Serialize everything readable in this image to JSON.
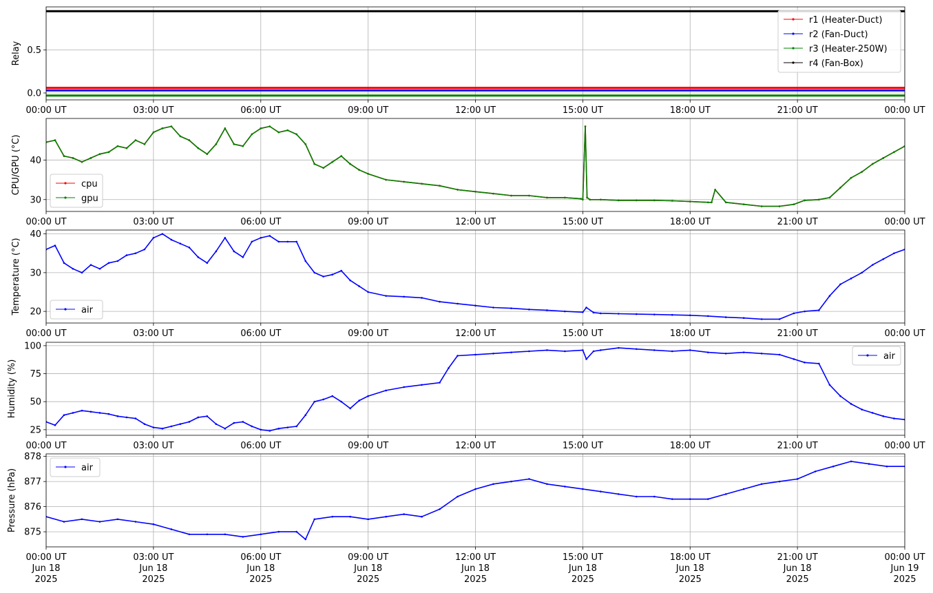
{
  "x_ticks": [
    "00:00 UT",
    "03:00 UT",
    "06:00 UT",
    "09:00 UT",
    "12:00 UT",
    "15:00 UT",
    "18:00 UT",
    "21:00 UT",
    "00:00 UT"
  ],
  "x_date_line1": [
    "Jun 18",
    "Jun 18",
    "Jun 18",
    "Jun 18",
    "Jun 18",
    "Jun 18",
    "Jun 18",
    "Jun 18",
    "Jun 19"
  ],
  "x_date_line2": [
    "2025",
    "2025",
    "2025",
    "2025",
    "2025",
    "2025",
    "2025",
    "2025",
    "2025"
  ],
  "chart_data": [
    {
      "type": "line",
      "ylabel": "Relay",
      "ylim": [
        -0.08,
        1.0
      ],
      "yticks": [
        0.0,
        0.5
      ],
      "ytick_labels": [
        "0.0",
        "0.5"
      ],
      "grid": true,
      "legend": "top-right",
      "x_range": [
        "2025-06-18 00:00",
        "2025-06-19 00:00"
      ],
      "series": [
        {
          "name": "r1 (Heater-Duct)",
          "color": "#ff0000",
          "x": [
            0,
            24
          ],
          "values": [
            0.06,
            0.06
          ]
        },
        {
          "name": "r2 (Fan-Duct)",
          "color": "#0000ff",
          "x": [
            0,
            24
          ],
          "values": [
            0.03,
            0.03
          ]
        },
        {
          "name": "r3 (Heater-250W)",
          "color": "#008000",
          "x": [
            0,
            24
          ],
          "values": [
            -0.03,
            -0.03
          ]
        },
        {
          "name": "r4 (Fan-Box)",
          "color": "#000000",
          "x": [
            0,
            24
          ],
          "values": [
            0.95,
            0.95
          ]
        }
      ]
    },
    {
      "type": "line",
      "ylabel": "CPU/GPU (°C)",
      "ylim": [
        27,
        50.5
      ],
      "yticks": [
        30,
        40
      ],
      "ytick_labels": [
        "30",
        "40"
      ],
      "grid": true,
      "legend": "lower-left",
      "series": [
        {
          "name": "cpu",
          "color": "#ff0000",
          "x": [
            0,
            0.25,
            0.5,
            0.75,
            1.0,
            1.25,
            1.5,
            1.75,
            2.0,
            2.25,
            2.5,
            2.75,
            3.0,
            3.25,
            3.5,
            3.75,
            4.0,
            4.25,
            4.5,
            4.75,
            5.0,
            5.25,
            5.5,
            5.75,
            6.0,
            6.25,
            6.5,
            6.75,
            7.0,
            7.25,
            7.5,
            7.75,
            8.0,
            8.25,
            8.5,
            8.75,
            9.0,
            9.5,
            10.0,
            10.5,
            11.0,
            11.5,
            12.0,
            12.5,
            13.0,
            13.5,
            14.0,
            14.5,
            14.95,
            15.0,
            15.07,
            15.12,
            15.2,
            15.5,
            16.0,
            16.5,
            17.0,
            17.5,
            18.0,
            18.5,
            18.6,
            18.7,
            19.0,
            19.5,
            20.0,
            20.5,
            20.9,
            21.2,
            21.6,
            21.9,
            22.2,
            22.5,
            22.8,
            23.1,
            23.4,
            23.7,
            24.0
          ],
          "values": [
            44.5,
            45.0,
            41.0,
            40.5,
            39.5,
            40.5,
            41.5,
            42.0,
            43.5,
            43.0,
            45.0,
            44.0,
            47.0,
            48.0,
            48.5,
            46.0,
            45.0,
            43.0,
            41.5,
            44.0,
            48.0,
            44.0,
            43.5,
            46.5,
            48.0,
            48.5,
            47.0,
            47.5,
            46.5,
            44.0,
            39.0,
            38.0,
            39.5,
            41.0,
            39.0,
            37.5,
            36.5,
            35.0,
            34.5,
            34.0,
            33.5,
            32.5,
            32.0,
            31.5,
            31.0,
            31.0,
            30.5,
            30.5,
            30.2,
            30.0,
            48.5,
            30.5,
            30.0,
            30.0,
            29.8,
            29.8,
            29.8,
            29.7,
            29.5,
            29.3,
            29.3,
            32.5,
            29.3,
            28.8,
            28.3,
            28.3,
            28.8,
            29.8,
            30.0,
            30.5,
            33.0,
            35.5,
            37.0,
            39.0,
            40.5,
            42.0,
            43.5
          ]
        },
        {
          "name": "gpu",
          "color": "#008000",
          "x": [
            0,
            0.25,
            0.5,
            0.75,
            1.0,
            1.25,
            1.5,
            1.75,
            2.0,
            2.25,
            2.5,
            2.75,
            3.0,
            3.25,
            3.5,
            3.75,
            4.0,
            4.25,
            4.5,
            4.75,
            5.0,
            5.25,
            5.5,
            5.75,
            6.0,
            6.25,
            6.5,
            6.75,
            7.0,
            7.25,
            7.5,
            7.75,
            8.0,
            8.25,
            8.5,
            8.75,
            9.0,
            9.5,
            10.0,
            10.5,
            11.0,
            11.5,
            12.0,
            12.5,
            13.0,
            13.5,
            14.0,
            14.5,
            14.95,
            15.0,
            15.07,
            15.12,
            15.2,
            15.5,
            16.0,
            16.5,
            17.0,
            17.5,
            18.0,
            18.5,
            18.6,
            18.7,
            19.0,
            19.5,
            20.0,
            20.5,
            20.9,
            21.2,
            21.6,
            21.9,
            22.2,
            22.5,
            22.8,
            23.1,
            23.4,
            23.7,
            24.0
          ],
          "values": [
            44.5,
            45.0,
            41.0,
            40.5,
            39.5,
            40.5,
            41.5,
            42.0,
            43.5,
            43.0,
            45.0,
            44.0,
            47.0,
            48.0,
            48.5,
            46.0,
            45.0,
            43.0,
            41.5,
            44.0,
            48.0,
            44.0,
            43.5,
            46.5,
            48.0,
            48.5,
            47.0,
            47.5,
            46.5,
            44.0,
            39.0,
            38.0,
            39.5,
            41.0,
            39.0,
            37.5,
            36.5,
            35.0,
            34.5,
            34.0,
            33.5,
            32.5,
            32.0,
            31.5,
            31.0,
            31.0,
            30.5,
            30.5,
            30.2,
            30.0,
            48.5,
            30.5,
            30.0,
            30.0,
            29.8,
            29.8,
            29.8,
            29.7,
            29.5,
            29.3,
            29.3,
            32.5,
            29.3,
            28.8,
            28.3,
            28.3,
            28.8,
            29.8,
            30.0,
            30.5,
            33.0,
            35.5,
            37.0,
            39.0,
            40.5,
            42.0,
            43.5
          ]
        }
      ]
    },
    {
      "type": "line",
      "ylabel": "Temperature (°C)",
      "ylim": [
        17,
        41
      ],
      "yticks": [
        20,
        30,
        40
      ],
      "ytick_labels": [
        "20",
        "30",
        "40"
      ],
      "grid": true,
      "legend": "lower-left",
      "series": [
        {
          "name": "air",
          "color": "#0000ff",
          "x": [
            0,
            0.25,
            0.5,
            0.75,
            1.0,
            1.25,
            1.5,
            1.75,
            2.0,
            2.25,
            2.5,
            2.75,
            3.0,
            3.25,
            3.5,
            3.75,
            4.0,
            4.25,
            4.5,
            4.75,
            5.0,
            5.25,
            5.5,
            5.75,
            6.0,
            6.25,
            6.5,
            6.75,
            7.0,
            7.25,
            7.5,
            7.75,
            8.0,
            8.25,
            8.5,
            8.75,
            9.0,
            9.5,
            10.0,
            10.5,
            11.0,
            11.5,
            12.0,
            12.5,
            13.0,
            13.5,
            14.0,
            14.5,
            15.0,
            15.1,
            15.3,
            15.5,
            16.0,
            16.5,
            17.0,
            17.5,
            18.0,
            18.5,
            19.0,
            19.5,
            20.0,
            20.5,
            20.9,
            21.2,
            21.6,
            21.9,
            22.2,
            22.5,
            22.8,
            23.1,
            23.4,
            23.7,
            24.0
          ],
          "values": [
            36.0,
            37.0,
            32.5,
            31.0,
            30.0,
            32.0,
            31.0,
            32.5,
            33.0,
            34.5,
            35.0,
            36.0,
            39.0,
            40.0,
            38.5,
            37.5,
            36.5,
            34.0,
            32.5,
            35.5,
            39.0,
            35.5,
            34.0,
            38.0,
            39.0,
            39.5,
            38.0,
            38.0,
            38.0,
            33.0,
            30.0,
            29.0,
            29.5,
            30.5,
            28.0,
            26.5,
            25.0,
            24.0,
            23.8,
            23.5,
            22.5,
            22.0,
            21.5,
            21.0,
            20.8,
            20.5,
            20.3,
            20.0,
            19.8,
            21.0,
            19.7,
            19.5,
            19.4,
            19.3,
            19.2,
            19.1,
            19.0,
            18.8,
            18.5,
            18.3,
            18.0,
            18.0,
            19.5,
            20.0,
            20.3,
            24.0,
            27.0,
            28.5,
            30.0,
            32.0,
            33.5,
            35.0,
            36.0
          ]
        }
      ]
    },
    {
      "type": "line",
      "ylabel": "Humidity (%)",
      "ylim": [
        20,
        103
      ],
      "yticks": [
        25,
        50,
        75,
        100
      ],
      "ytick_labels": [
        "25",
        "50",
        "75",
        "100"
      ],
      "grid": true,
      "legend": "top-right",
      "series": [
        {
          "name": "air",
          "color": "#0000ff",
          "x": [
            0,
            0.25,
            0.5,
            0.75,
            1.0,
            1.25,
            1.5,
            1.75,
            2.0,
            2.25,
            2.5,
            2.75,
            3.0,
            3.25,
            3.5,
            3.75,
            4.0,
            4.25,
            4.5,
            4.75,
            5.0,
            5.25,
            5.5,
            5.75,
            6.0,
            6.25,
            6.5,
            6.75,
            7.0,
            7.25,
            7.5,
            7.75,
            8.0,
            8.25,
            8.5,
            8.75,
            9.0,
            9.5,
            10.0,
            10.5,
            11.0,
            11.25,
            11.5,
            12.0,
            12.5,
            13.0,
            13.5,
            14.0,
            14.5,
            15.0,
            15.1,
            15.3,
            15.5,
            16.0,
            16.5,
            17.0,
            17.5,
            18.0,
            18.5,
            19.0,
            19.5,
            20.0,
            20.5,
            20.9,
            21.2,
            21.6,
            21.9,
            22.2,
            22.5,
            22.8,
            23.1,
            23.4,
            23.7,
            24.0
          ],
          "values": [
            32.0,
            29.0,
            38.0,
            40.0,
            42.0,
            41.0,
            40.0,
            39.0,
            37.0,
            36.0,
            35.0,
            30.0,
            27.0,
            26.0,
            28.0,
            30.0,
            32.0,
            36.0,
            37.0,
            30.0,
            26.0,
            31.0,
            32.0,
            28.0,
            25.0,
            24.0,
            26.0,
            27.0,
            28.0,
            38.0,
            50.0,
            52.0,
            55.0,
            50.0,
            44.0,
            51.0,
            55.0,
            60.0,
            63.0,
            65.0,
            67.0,
            80.0,
            91.0,
            92.0,
            93.0,
            94.0,
            95.0,
            96.0,
            95.0,
            96.0,
            88.0,
            95.0,
            96.0,
            98.0,
            97.0,
            96.0,
            95.0,
            96.0,
            94.0,
            93.0,
            94.0,
            93.0,
            92.0,
            88.0,
            85.0,
            84.0,
            65.0,
            55.0,
            48.0,
            43.0,
            40.0,
            37.0,
            35.0,
            34.0
          ]
        }
      ]
    },
    {
      "type": "line",
      "ylabel": "Pressure (hPa)",
      "ylim": [
        874.4,
        878.1
      ],
      "yticks": [
        875,
        876,
        877,
        878
      ],
      "ytick_labels": [
        "875",
        "876",
        "877",
        "878"
      ],
      "grid": true,
      "legend": "top-left",
      "series": [
        {
          "name": "air",
          "color": "#0000ff",
          "x": [
            0,
            0.5,
            1.0,
            1.5,
            2.0,
            2.5,
            3.0,
            3.5,
            4.0,
            4.5,
            5.0,
            5.5,
            6.0,
            6.5,
            7.0,
            7.25,
            7.5,
            8.0,
            8.5,
            9.0,
            9.5,
            10.0,
            10.5,
            11.0,
            11.5,
            12.0,
            12.5,
            13.0,
            13.5,
            14.0,
            14.5,
            15.0,
            15.5,
            16.0,
            16.5,
            17.0,
            17.5,
            18.0,
            18.5,
            19.0,
            19.5,
            20.0,
            20.5,
            21.0,
            21.5,
            22.0,
            22.5,
            23.0,
            23.5,
            24.0
          ],
          "values": [
            875.6,
            875.4,
            875.5,
            875.4,
            875.5,
            875.4,
            875.3,
            875.1,
            874.9,
            874.9,
            874.9,
            874.8,
            874.9,
            875.0,
            875.0,
            874.7,
            875.5,
            875.6,
            875.6,
            875.5,
            875.6,
            875.7,
            875.6,
            875.9,
            876.4,
            876.7,
            876.9,
            877.0,
            877.1,
            876.9,
            876.8,
            876.7,
            876.6,
            876.5,
            876.4,
            876.4,
            876.3,
            876.3,
            876.3,
            876.5,
            876.7,
            876.9,
            877.0,
            877.1,
            877.4,
            877.6,
            877.8,
            877.7,
            877.6,
            877.6
          ]
        }
      ]
    }
  ]
}
